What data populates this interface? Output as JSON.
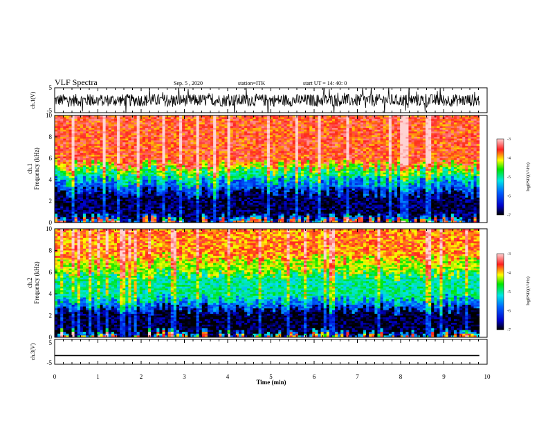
{
  "header": {
    "title": "VLF Spectra",
    "date": "Sep. 5 , 2020",
    "station": "station=ITK",
    "start_ut": "start UT =  14: 40: 0"
  },
  "chart_data": [
    {
      "type": "line",
      "ylabel": "ch.1(V)",
      "yticks": [
        "5",
        "-5"
      ],
      "ylim": [
        -5,
        5
      ],
      "xlim": [
        0,
        10
      ],
      "data_extent_min": 9.82,
      "series_band": [
        -2.5,
        2.5
      ],
      "color": "#000000"
    },
    {
      "type": "heatmap",
      "ylabel_line1": "ch.1",
      "ylabel_line2": "Frequency (kHz)",
      "yticks": [
        "0",
        "2",
        "4",
        "6",
        "8",
        "10"
      ],
      "ylim": [
        0,
        10
      ],
      "xlim": [
        0,
        10
      ],
      "data_extent_min": 9.82,
      "colorbar": {
        "label": "log(PSD)(V²/Hz)",
        "ticks": [
          "-3",
          "-4",
          "-5",
          "-6",
          "-7"
        ],
        "range": [
          -7,
          -3
        ]
      },
      "bands": [
        {
          "from_khz": 0,
          "to_khz": 0.3,
          "log_psd": -5.5
        },
        {
          "from_khz": 0.3,
          "to_khz": 2.8,
          "log_psd": -6.8
        },
        {
          "from_khz": 2.8,
          "to_khz": 3.8,
          "log_psd": -5.9
        },
        {
          "from_khz": 3.8,
          "to_khz": 4.7,
          "log_psd": -5.0
        },
        {
          "from_khz": 4.7,
          "to_khz": 5.3,
          "log_psd": -4.3
        },
        {
          "from_khz": 5.3,
          "to_khz": 10,
          "log_psd": -3.6
        }
      ]
    },
    {
      "type": "heatmap",
      "ylabel_line1": "ch.2",
      "ylabel_line2": "Frequency (kHz)",
      "yticks": [
        "0",
        "2",
        "4",
        "6",
        "8",
        "10"
      ],
      "ylim": [
        0,
        10
      ],
      "xlim": [
        0,
        10
      ],
      "data_extent_min": 9.82,
      "colorbar": {
        "label": "log(PSD)(V²/Hz)",
        "ticks": [
          "-3",
          "-4",
          "-5",
          "-6",
          "-7"
        ],
        "range": [
          -7,
          -3
        ]
      },
      "bands": [
        {
          "from_khz": 0,
          "to_khz": 0.3,
          "log_psd": -5.5
        },
        {
          "from_khz": 0.3,
          "to_khz": 2.6,
          "log_psd": -6.9
        },
        {
          "from_khz": 2.6,
          "to_khz": 3.4,
          "log_psd": -5.8
        },
        {
          "from_khz": 3.4,
          "to_khz": 5.8,
          "log_psd": -5.0
        },
        {
          "from_khz": 5.8,
          "to_khz": 7.2,
          "log_psd": -4.3
        },
        {
          "from_khz": 7.2,
          "to_khz": 10,
          "log_psd": -3.8
        }
      ]
    },
    {
      "type": "line",
      "ylabel": "ch.3(V)",
      "yticks": [
        "5",
        "-5"
      ],
      "ylim": [
        -5,
        5
      ],
      "xlim": [
        0,
        10
      ],
      "data_extent_min": 9.82,
      "constant_value": -1.5,
      "color": "#000000"
    }
  ],
  "xaxis": {
    "label": "Time (min)",
    "ticks": [
      "0",
      "1",
      "2",
      "3",
      "4",
      "5",
      "6",
      "7",
      "8",
      "9",
      "10"
    ],
    "range": [
      0,
      10
    ]
  }
}
